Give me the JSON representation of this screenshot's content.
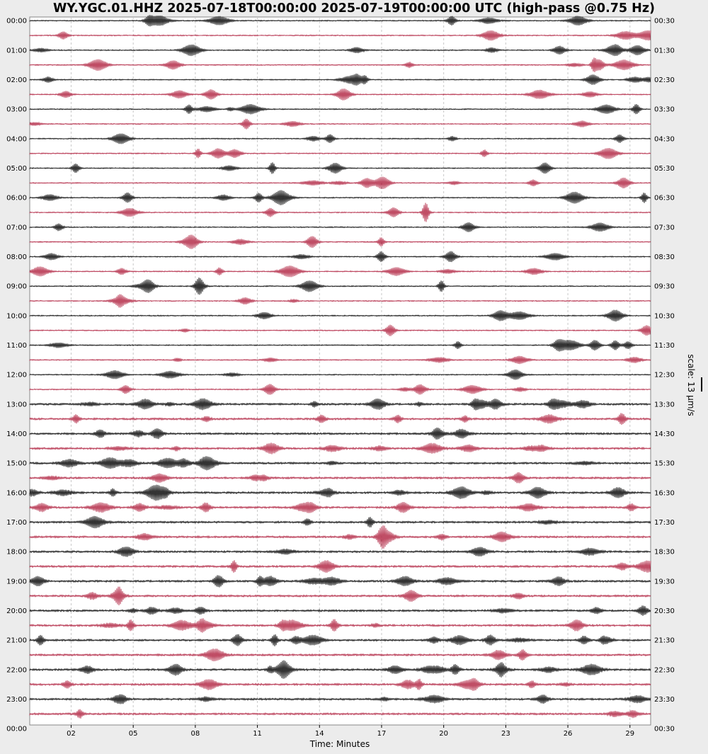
{
  "chart_data": {
    "type": "line",
    "title": "WY.YGC.01.HHZ 2025-07-18T00:00:00 2025-07-19T00:00:00 UTC (high-pass @0.75 Hz)",
    "xlabel": "Time: Minutes",
    "x_ticks": [
      "02",
      "05",
      "08",
      "11",
      "14",
      "17",
      "20",
      "23",
      "26",
      "29"
    ],
    "x_tick_values": [
      2,
      5,
      8,
      11,
      14,
      17,
      20,
      23,
      26,
      29
    ],
    "xlim": [
      0,
      30
    ],
    "left_labels": [
      "00:00",
      "01:00",
      "02:00",
      "03:00",
      "04:00",
      "05:00",
      "06:00",
      "07:00",
      "08:00",
      "09:00",
      "10:00",
      "11:00",
      "12:00",
      "13:00",
      "14:00",
      "15:00",
      "16:00",
      "17:00",
      "18:00",
      "19:00",
      "20:00",
      "21:00",
      "22:00",
      "23:00",
      "00:00"
    ],
    "right_labels": [
      "00:30",
      "01:30",
      "02:30",
      "03:30",
      "04:30",
      "05:30",
      "06:30",
      "07:30",
      "08:30",
      "09:30",
      "10:30",
      "11:30",
      "12:30",
      "13:30",
      "14:30",
      "15:30",
      "16:30",
      "17:30",
      "18:30",
      "19:30",
      "20:30",
      "21:30",
      "22:30",
      "23:30",
      "00:30"
    ],
    "rows": 48,
    "row_minutes": 30,
    "colors": [
      "#000000",
      "#b0213f"
    ],
    "grid": true,
    "scale_label": "scale: 13 µm/s",
    "series_note": "seismic waveform, one row per 30 min, alternating colors"
  }
}
